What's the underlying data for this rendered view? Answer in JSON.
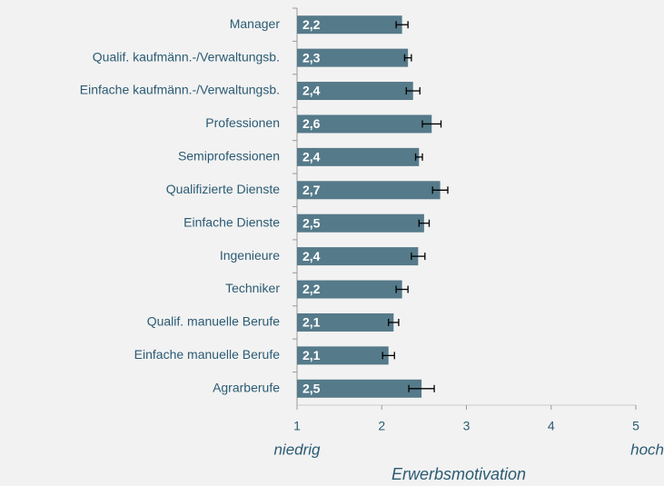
{
  "chart_data": {
    "type": "bar",
    "orientation": "horizontal",
    "categories": [
      "Manager",
      "Qualif. kaufmänn.-/Verwaltungsb.",
      "Einfache kaufmänn.-/Verwaltungsb.",
      "Professionen",
      "Semiprofessionen",
      "Qualifizierte Dienste",
      "Einfache Dienste",
      "Ingenieure",
      "Techniker",
      "Qualif. manuelle Berufe",
      "Einfache manuelle Berufe",
      "Agrarberufe"
    ],
    "values": [
      2.24,
      2.31,
      2.37,
      2.59,
      2.44,
      2.69,
      2.5,
      2.43,
      2.24,
      2.14,
      2.08,
      2.47
    ],
    "value_labels": [
      "2,2",
      "2,3",
      "2,4",
      "2,6",
      "2,4",
      "2,7",
      "2,5",
      "2,4",
      "2,2",
      "2,1",
      "2,1",
      "2,5"
    ],
    "errors": [
      0.07,
      0.04,
      0.08,
      0.11,
      0.04,
      0.09,
      0.06,
      0.08,
      0.07,
      0.06,
      0.07,
      0.15
    ],
    "color": "#557a8a",
    "xlim": [
      1,
      5
    ],
    "xticks": [
      1,
      2,
      3,
      4,
      5
    ],
    "x_label": "Erwerbsmotivation",
    "annotations": [
      "niedrig",
      "hoch"
    ]
  }
}
